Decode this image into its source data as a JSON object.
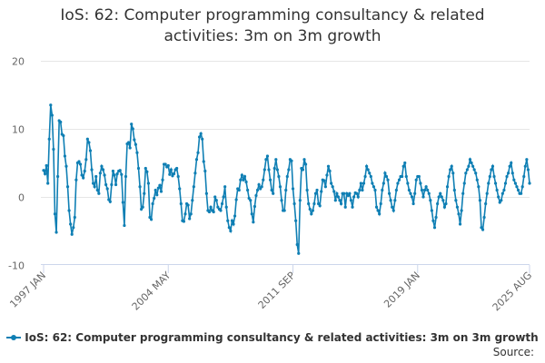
{
  "chart_data": {
    "type": "line",
    "title_line1": "IoS: 62: Computer programming consultancy & related",
    "title_line2": "activities: 3m on 3m growth",
    "series_name": "IoS: 62: Computer programming consultancy & related activities: 3m on 3m growth",
    "source_label": "Source:",
    "color": "#0f7fb4",
    "x_start": "1997 JAN",
    "x_end": "2025 AUG",
    "x_ticks": [
      {
        "label": "1997 JAN",
        "index": 0
      },
      {
        "label": "2004 MAY",
        "index": 88
      },
      {
        "label": "2011 SEP",
        "index": 176
      },
      {
        "label": "2019 JAN",
        "index": 264
      },
      {
        "label": "2025 AUG",
        "index": 343
      }
    ],
    "y_ticks": [
      20,
      10,
      0,
      -10
    ],
    "ylim": [
      -10,
      20
    ],
    "values": [
      3.9,
      3.4,
      4.6,
      2.0,
      8.5,
      13.5,
      12.0,
      7.0,
      -2.5,
      -5.2,
      3.0,
      11.2,
      11.0,
      9.2,
      9.0,
      6.0,
      4.5,
      1.5,
      -2.0,
      -4.0,
      -5.5,
      -4.5,
      -3.0,
      2.5,
      5.0,
      5.2,
      4.8,
      3.2,
      2.8,
      3.8,
      5.5,
      8.5,
      8.0,
      6.8,
      4.0,
      2.0,
      1.5,
      3.0,
      1.0,
      0.5,
      3.5,
      4.5,
      4.0,
      3.2,
      1.8,
      1.2,
      -0.4,
      -0.7,
      1.8,
      3.8,
      3.2,
      1.8,
      3.4,
      3.8,
      3.9,
      3.3,
      -0.8,
      -4.2,
      3.0,
      7.8,
      8.0,
      7.2,
      10.7,
      10.0,
      8.4,
      7.7,
      6.5,
      4.2,
      1.5,
      -1.8,
      -1.5,
      0.5,
      4.2,
      3.7,
      2.0,
      -3.0,
      -3.3,
      -1.0,
      -0.2,
      1.0,
      0.3,
      1.3,
      1.7,
      0.8,
      2.5,
      4.8,
      4.8,
      4.4,
      4.6,
      3.3,
      4.0,
      3.1,
      3.4,
      4.0,
      4.2,
      3.0,
      1.2,
      -1.0,
      -3.5,
      -3.6,
      -2.5,
      -1.0,
      -1.2,
      -3.2,
      -2.5,
      -0.5,
      1.5,
      3.5,
      5.5,
      6.5,
      8.8,
      9.3,
      8.5,
      5.2,
      3.8,
      0.5,
      -2.0,
      -2.2,
      -1.5,
      -2.0,
      -2.2,
      0.0,
      -0.5,
      -1.5,
      -1.8,
      -2.0,
      -1.0,
      0.0,
      1.5,
      -1.5,
      -3.5,
      -4.5,
      -5.0,
      -3.5,
      -4.0,
      -2.8,
      -0.4,
      1.2,
      1.0,
      2.5,
      3.2,
      2.5,
      3.0,
      2.2,
      1.0,
      -0.2,
      -0.5,
      -2.5,
      -3.7,
      -1.4,
      0.2,
      1.0,
      1.8,
      1.2,
      1.5,
      2.5,
      4.0,
      5.5,
      6.0,
      4.0,
      2.5,
      1.0,
      0.5,
      4.2,
      5.5,
      4.0,
      3.0,
      1.5,
      -0.5,
      -2.0,
      -2.0,
      1.0,
      3.0,
      4.0,
      5.5,
      5.3,
      1.2,
      -1.0,
      -3.5,
      -7.0,
      -8.3,
      -0.5,
      4.2,
      4.0,
      5.5,
      4.8,
      1.0,
      -1.0,
      -1.8,
      -2.5,
      -2.0,
      -1.0,
      0.5,
      1.0,
      -1.0,
      -1.3,
      0.8,
      2.5,
      2.4,
      1.5,
      3.2,
      4.5,
      3.8,
      2.0,
      1.5,
      0.8,
      -0.5,
      0.5,
      0.0,
      -0.5,
      -1.0,
      0.5,
      0.5,
      -1.5,
      0.5,
      0.2,
      0.5,
      -0.5,
      -1.5,
      0.0,
      0.6,
      0.5,
      0.0,
      1.0,
      2.0,
      1.0,
      2.0,
      3.0,
      4.5,
      4.0,
      3.5,
      3.0,
      2.0,
      1.5,
      1.0,
      -1.5,
      -2.0,
      -2.5,
      -1.0,
      1.0,
      2.0,
      3.5,
      3.0,
      2.5,
      0.5,
      -0.5,
      -1.5,
      -2.0,
      -0.5,
      1.0,
      2.0,
      2.5,
      3.0,
      3.0,
      4.5,
      5.0,
      3.0,
      2.0,
      1.0,
      0.5,
      0.0,
      -1.0,
      0.5,
      2.5,
      3.0,
      3.0,
      2.0,
      1.0,
      0.0,
      1.0,
      1.5,
      1.0,
      0.5,
      -0.5,
      -2.0,
      -3.5,
      -4.5,
      -3.0,
      -1.0,
      0.0,
      0.5,
      0.0,
      -0.5,
      -1.5,
      -1.0,
      1.5,
      3.0,
      4.0,
      4.5,
      3.5,
      1.0,
      -0.5,
      -1.5,
      -2.5,
      -4.0,
      -2.0,
      0.5,
      2.0,
      3.5,
      4.0,
      4.5,
      5.5,
      5.0,
      4.5,
      4.0,
      3.5,
      2.5,
      1.5,
      -0.5,
      -4.5,
      -4.8,
      -3.0,
      -1.0,
      0.5,
      2.0,
      3.0,
      4.0,
      4.5,
      3.0,
      2.0,
      1.0,
      0.0,
      -0.8,
      -0.5,
      0.5,
      1.0,
      2.0,
      3.0,
      3.5,
      4.5,
      5.0,
      3.5,
      2.5,
      2.0,
      1.5,
      1.0,
      0.5,
      0.5,
      1.5,
      3.0,
      4.5,
      5.5,
      4.0,
      2.0
    ]
  }
}
